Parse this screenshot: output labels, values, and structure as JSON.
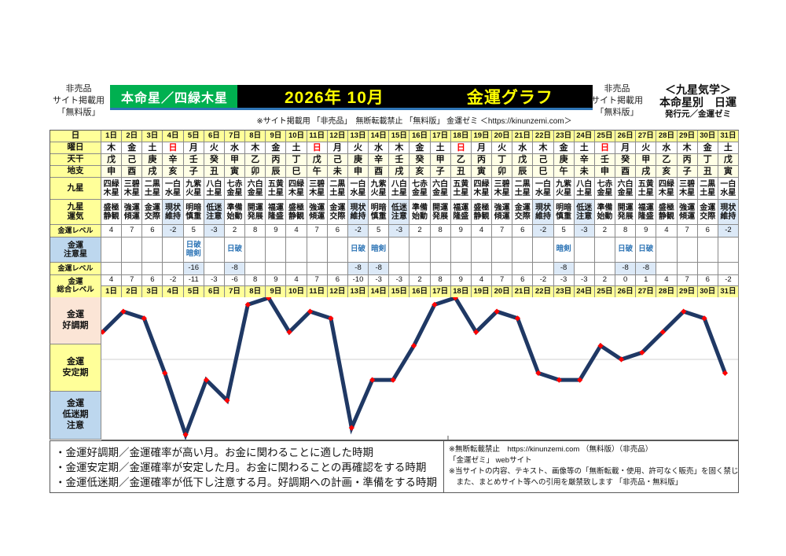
{
  "header": {
    "left_lines": [
      "非売品",
      "サイト掲載用",
      "「無料版」"
    ],
    "honmeisei": "本命星／四緑木星",
    "title_month": "2026年 10月",
    "title_graph": "金運グラフ",
    "subline": "※サイト掲載用 「非売品」　無断転載禁止 「無料版」 金運ゼミ ＜https://kinunzemi.com＞",
    "right_lines": [
      "非売品",
      "サイト掲載用",
      "「無料版」"
    ],
    "right_block": [
      "＜九星気学＞",
      "本命星別　日運",
      "発行元／金運ゼミ"
    ]
  },
  "table": {
    "row_labels": {
      "day": "日",
      "weekday": "曜日",
      "stem": "天干",
      "branch": "地支",
      "star": "九星",
      "star_unki": "九星\n運気",
      "level": "金運レベル",
      "caution": "金運\n注意星",
      "caution_level": "金運レベル",
      "total": "金運\n総合レベル"
    },
    "days": [
      {
        "label": "1日",
        "weekday": "木",
        "sunday": false,
        "stem": "戊",
        "branch": "申",
        "star": "四緑木星",
        "unki": "盛極静観",
        "level": 4,
        "caution": "",
        "caution_level": null,
        "total": 4
      },
      {
        "label": "2日",
        "weekday": "金",
        "sunday": false,
        "stem": "己",
        "branch": "酉",
        "star": "三碧木星",
        "unki": "強運傾運",
        "level": 7,
        "caution": "",
        "caution_level": null,
        "total": 7
      },
      {
        "label": "3日",
        "weekday": "土",
        "sunday": false,
        "stem": "庚",
        "branch": "戌",
        "star": "二黒土星",
        "unki": "金運交際",
        "level": 6,
        "caution": "",
        "caution_level": null,
        "total": 6
      },
      {
        "label": "4日",
        "weekday": "日",
        "sunday": true,
        "stem": "辛",
        "branch": "亥",
        "star": "一白水星",
        "unki": "現状維持",
        "level": -2,
        "caution": "",
        "caution_level": null,
        "total": -2
      },
      {
        "label": "5日",
        "weekday": "月",
        "sunday": false,
        "stem": "壬",
        "branch": "子",
        "star": "九紫火星",
        "unki": "明暗慎重",
        "level": 5,
        "caution": "日破\n暗剣",
        "caution_level": -16,
        "total": -11
      },
      {
        "label": "6日",
        "weekday": "火",
        "sunday": false,
        "stem": "癸",
        "branch": "丑",
        "star": "八白土星",
        "unki": "低迷注意",
        "level": -3,
        "caution": "",
        "caution_level": null,
        "total": -3
      },
      {
        "label": "7日",
        "weekday": "水",
        "sunday": false,
        "stem": "甲",
        "branch": "寅",
        "star": "七赤金星",
        "unki": "準備始動",
        "level": 2,
        "caution": "日破",
        "caution_level": -8,
        "total": -6
      },
      {
        "label": "8日",
        "weekday": "木",
        "sunday": false,
        "stem": "乙",
        "branch": "卯",
        "star": "六白金星",
        "unki": "開運発展",
        "level": 8,
        "caution": "",
        "caution_level": null,
        "total": 8
      },
      {
        "label": "9日",
        "weekday": "金",
        "sunday": false,
        "stem": "丙",
        "branch": "辰",
        "star": "五黄土星",
        "unki": "福運隆盛",
        "level": 9,
        "caution": "",
        "caution_level": null,
        "total": 9
      },
      {
        "label": "10日",
        "weekday": "土",
        "sunday": false,
        "stem": "丁",
        "branch": "巳",
        "star": "四緑木星",
        "unki": "盛極静観",
        "level": 4,
        "caution": "",
        "caution_level": null,
        "total": 4
      },
      {
        "label": "11日",
        "weekday": "日",
        "sunday": true,
        "stem": "戊",
        "branch": "午",
        "star": "三碧木星",
        "unki": "強運傾運",
        "level": 7,
        "caution": "",
        "caution_level": null,
        "total": 7
      },
      {
        "label": "12日",
        "weekday": "月",
        "sunday": false,
        "stem": "己",
        "branch": "未",
        "star": "二黒土星",
        "unki": "金運交際",
        "level": 6,
        "caution": "",
        "caution_level": null,
        "total": 6
      },
      {
        "label": "13日",
        "weekday": "火",
        "sunday": false,
        "stem": "庚",
        "branch": "申",
        "star": "一白水星",
        "unki": "現状維持",
        "level": -2,
        "caution": "日破",
        "caution_level": -8,
        "total": -10
      },
      {
        "label": "14日",
        "weekday": "水",
        "sunday": false,
        "stem": "辛",
        "branch": "酉",
        "star": "九紫火星",
        "unki": "明暗慎重",
        "level": 5,
        "caution": "暗剣",
        "caution_level": -8,
        "total": -3
      },
      {
        "label": "15日",
        "weekday": "木",
        "sunday": false,
        "stem": "壬",
        "branch": "戌",
        "star": "八白土星",
        "unki": "低迷注意",
        "level": -3,
        "caution": "",
        "caution_level": null,
        "total": -3
      },
      {
        "label": "16日",
        "weekday": "金",
        "sunday": false,
        "stem": "癸",
        "branch": "亥",
        "star": "七赤金星",
        "unki": "準備始動",
        "level": 2,
        "caution": "",
        "caution_level": null,
        "total": 2
      },
      {
        "label": "17日",
        "weekday": "土",
        "sunday": false,
        "stem": "甲",
        "branch": "子",
        "star": "六白金星",
        "unki": "開運発展",
        "level": 8,
        "caution": "",
        "caution_level": null,
        "total": 8
      },
      {
        "label": "18日",
        "weekday": "日",
        "sunday": true,
        "stem": "乙",
        "branch": "丑",
        "star": "五黄土星",
        "unki": "福運隆盛",
        "level": 9,
        "caution": "",
        "caution_level": null,
        "total": 9
      },
      {
        "label": "19日",
        "weekday": "月",
        "sunday": false,
        "stem": "丙",
        "branch": "寅",
        "star": "四緑木星",
        "unki": "盛極静観",
        "level": 4,
        "caution": "",
        "caution_level": null,
        "total": 4
      },
      {
        "label": "20日",
        "weekday": "火",
        "sunday": false,
        "stem": "丁",
        "branch": "卯",
        "star": "三碧木星",
        "unki": "強運傾運",
        "level": 7,
        "caution": "",
        "caution_level": null,
        "total": 7
      },
      {
        "label": "21日",
        "weekday": "水",
        "sunday": false,
        "stem": "戊",
        "branch": "辰",
        "star": "二黒土星",
        "unki": "金運交際",
        "level": 6,
        "caution": "",
        "caution_level": null,
        "total": 6
      },
      {
        "label": "22日",
        "weekday": "木",
        "sunday": false,
        "stem": "己",
        "branch": "巳",
        "star": "一白水星",
        "unki": "現状維持",
        "level": -2,
        "caution": "",
        "caution_level": null,
        "total": -2
      },
      {
        "label": "23日",
        "weekday": "金",
        "sunday": false,
        "stem": "庚",
        "branch": "午",
        "star": "九紫火星",
        "unki": "明暗慎重",
        "level": 5,
        "caution": "暗剣",
        "caution_level": -8,
        "total": -3
      },
      {
        "label": "24日",
        "weekday": "土",
        "sunday": false,
        "stem": "辛",
        "branch": "未",
        "star": "八白土星",
        "unki": "低迷注意",
        "level": -3,
        "caution": "",
        "caution_level": null,
        "total": -3
      },
      {
        "label": "25日",
        "weekday": "日",
        "sunday": true,
        "stem": "壬",
        "branch": "申",
        "star": "七赤金星",
        "unki": "準備始動",
        "level": 2,
        "caution": "",
        "caution_level": null,
        "total": 2
      },
      {
        "label": "26日",
        "weekday": "月",
        "sunday": false,
        "stem": "癸",
        "branch": "酉",
        "star": "六白金星",
        "unki": "開運発展",
        "level": 8,
        "caution": "日破",
        "caution_level": -8,
        "total": 0
      },
      {
        "label": "27日",
        "weekday": "火",
        "sunday": false,
        "stem": "甲",
        "branch": "戌",
        "star": "五黄土星",
        "unki": "福運隆盛",
        "level": 9,
        "caution": "日破",
        "caution_level": -8,
        "total": 1
      },
      {
        "label": "28日",
        "weekday": "水",
        "sunday": false,
        "stem": "乙",
        "branch": "亥",
        "star": "四緑木星",
        "unki": "盛極静観",
        "level": 4,
        "caution": "",
        "caution_level": null,
        "total": 4
      },
      {
        "label": "29日",
        "weekday": "木",
        "sunday": false,
        "stem": "丙",
        "branch": "子",
        "star": "三碧木星",
        "unki": "強運傾運",
        "level": 7,
        "caution": "",
        "caution_level": null,
        "total": 7
      },
      {
        "label": "30日",
        "weekday": "金",
        "sunday": false,
        "stem": "丁",
        "branch": "丑",
        "star": "二黒土星",
        "unki": "金運交際",
        "level": 6,
        "caution": "",
        "caution_level": null,
        "total": 6
      },
      {
        "label": "31日",
        "weekday": "土",
        "sunday": true,
        "stem": "戊",
        "branch": "寅",
        "star": "一白水星",
        "unki": "現状維持",
        "level": -2,
        "caution": "",
        "caution_level": null,
        "total": -2
      }
    ]
  },
  "chart_data": {
    "type": "line",
    "title": "金運グラフ 2026年10月",
    "series": [
      {
        "name": "金運総合レベル",
        "values": [
          4,
          7,
          6,
          -2,
          -11,
          -3,
          -6,
          8,
          9,
          4,
          7,
          6,
          -10,
          -3,
          -3,
          2,
          8,
          9,
          4,
          7,
          6,
          -2,
          -3,
          -3,
          2,
          0,
          1,
          4,
          7,
          6,
          -2
        ]
      }
    ],
    "categories": [
      "1日",
      "2日",
      "3日",
      "4日",
      "5日",
      "6日",
      "7日",
      "8日",
      "9日",
      "10日",
      "11日",
      "12日",
      "13日",
      "14日",
      "15日",
      "16日",
      "17日",
      "18日",
      "19日",
      "20日",
      "21日",
      "22日",
      "23日",
      "24日",
      "25日",
      "26日",
      "27日",
      "28日",
      "29日",
      "30日",
      "31日"
    ],
    "ylim": [
      -12,
      9
    ],
    "gridlines": [
      0
    ],
    "line_color": "#1F3864",
    "marker_color": "#FF0000",
    "legend_position": "none",
    "zones": [
      {
        "label": "金運\n好調期",
        "color": "#FBE5D6"
      },
      {
        "label": "金運\n安定期",
        "color": "#FFFF99"
      },
      {
        "label": "金運\n低迷期\n注意",
        "color": "#BDD7EE"
      }
    ]
  },
  "notes_left": [
    "・金運好調期／金運確率が高い月。お金に関わることに適した時期",
    "・金運安定期／金運確率が安定した月。お金に関わることの再確認をする時期",
    "・金運低迷期／金運確率が低下し注意する月。好調期への計画・準備をする時期"
  ],
  "notes_right": [
    "※無断転載禁止　https://kinunzemi.com （無料版）（非売品）",
    "「金運ゼミ」 webサイト",
    "※当サイトの内容、テキスト、画像等の「無断転載・使用、許可なく販売」を固く禁じます",
    "　また、まとめサイト等への引用を厳禁致します 「非売品・無料版」"
  ]
}
